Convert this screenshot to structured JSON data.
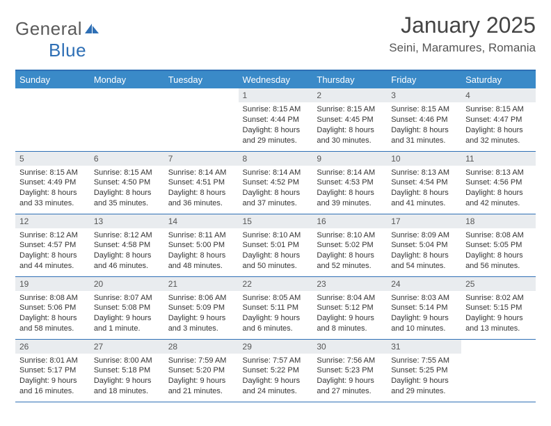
{
  "logo": {
    "text1": "General",
    "text2": "Blue"
  },
  "title": "January 2025",
  "location": "Seini, Maramures, Romania",
  "colors": {
    "header_bg": "#3a8ac8",
    "border": "#2e6fb5",
    "daynum_bg": "#e9ecef",
    "text": "#333333",
    "title_text": "#444444"
  },
  "daysOfWeek": [
    "Sunday",
    "Monday",
    "Tuesday",
    "Wednesday",
    "Thursday",
    "Friday",
    "Saturday"
  ],
  "weeks": [
    [
      {
        "n": "",
        "sr": "",
        "ss": "",
        "d1": "",
        "d2": ""
      },
      {
        "n": "",
        "sr": "",
        "ss": "",
        "d1": "",
        "d2": ""
      },
      {
        "n": "",
        "sr": "",
        "ss": "",
        "d1": "",
        "d2": ""
      },
      {
        "n": "1",
        "sr": "Sunrise: 8:15 AM",
        "ss": "Sunset: 4:44 PM",
        "d1": "Daylight: 8 hours",
        "d2": "and 29 minutes."
      },
      {
        "n": "2",
        "sr": "Sunrise: 8:15 AM",
        "ss": "Sunset: 4:45 PM",
        "d1": "Daylight: 8 hours",
        "d2": "and 30 minutes."
      },
      {
        "n": "3",
        "sr": "Sunrise: 8:15 AM",
        "ss": "Sunset: 4:46 PM",
        "d1": "Daylight: 8 hours",
        "d2": "and 31 minutes."
      },
      {
        "n": "4",
        "sr": "Sunrise: 8:15 AM",
        "ss": "Sunset: 4:47 PM",
        "d1": "Daylight: 8 hours",
        "d2": "and 32 minutes."
      }
    ],
    [
      {
        "n": "5",
        "sr": "Sunrise: 8:15 AM",
        "ss": "Sunset: 4:49 PM",
        "d1": "Daylight: 8 hours",
        "d2": "and 33 minutes."
      },
      {
        "n": "6",
        "sr": "Sunrise: 8:15 AM",
        "ss": "Sunset: 4:50 PM",
        "d1": "Daylight: 8 hours",
        "d2": "and 35 minutes."
      },
      {
        "n": "7",
        "sr": "Sunrise: 8:14 AM",
        "ss": "Sunset: 4:51 PM",
        "d1": "Daylight: 8 hours",
        "d2": "and 36 minutes."
      },
      {
        "n": "8",
        "sr": "Sunrise: 8:14 AM",
        "ss": "Sunset: 4:52 PM",
        "d1": "Daylight: 8 hours",
        "d2": "and 37 minutes."
      },
      {
        "n": "9",
        "sr": "Sunrise: 8:14 AM",
        "ss": "Sunset: 4:53 PM",
        "d1": "Daylight: 8 hours",
        "d2": "and 39 minutes."
      },
      {
        "n": "10",
        "sr": "Sunrise: 8:13 AM",
        "ss": "Sunset: 4:54 PM",
        "d1": "Daylight: 8 hours",
        "d2": "and 41 minutes."
      },
      {
        "n": "11",
        "sr": "Sunrise: 8:13 AM",
        "ss": "Sunset: 4:56 PM",
        "d1": "Daylight: 8 hours",
        "d2": "and 42 minutes."
      }
    ],
    [
      {
        "n": "12",
        "sr": "Sunrise: 8:12 AM",
        "ss": "Sunset: 4:57 PM",
        "d1": "Daylight: 8 hours",
        "d2": "and 44 minutes."
      },
      {
        "n": "13",
        "sr": "Sunrise: 8:12 AM",
        "ss": "Sunset: 4:58 PM",
        "d1": "Daylight: 8 hours",
        "d2": "and 46 minutes."
      },
      {
        "n": "14",
        "sr": "Sunrise: 8:11 AM",
        "ss": "Sunset: 5:00 PM",
        "d1": "Daylight: 8 hours",
        "d2": "and 48 minutes."
      },
      {
        "n": "15",
        "sr": "Sunrise: 8:10 AM",
        "ss": "Sunset: 5:01 PM",
        "d1": "Daylight: 8 hours",
        "d2": "and 50 minutes."
      },
      {
        "n": "16",
        "sr": "Sunrise: 8:10 AM",
        "ss": "Sunset: 5:02 PM",
        "d1": "Daylight: 8 hours",
        "d2": "and 52 minutes."
      },
      {
        "n": "17",
        "sr": "Sunrise: 8:09 AM",
        "ss": "Sunset: 5:04 PM",
        "d1": "Daylight: 8 hours",
        "d2": "and 54 minutes."
      },
      {
        "n": "18",
        "sr": "Sunrise: 8:08 AM",
        "ss": "Sunset: 5:05 PM",
        "d1": "Daylight: 8 hours",
        "d2": "and 56 minutes."
      }
    ],
    [
      {
        "n": "19",
        "sr": "Sunrise: 8:08 AM",
        "ss": "Sunset: 5:06 PM",
        "d1": "Daylight: 8 hours",
        "d2": "and 58 minutes."
      },
      {
        "n": "20",
        "sr": "Sunrise: 8:07 AM",
        "ss": "Sunset: 5:08 PM",
        "d1": "Daylight: 9 hours",
        "d2": "and 1 minute."
      },
      {
        "n": "21",
        "sr": "Sunrise: 8:06 AM",
        "ss": "Sunset: 5:09 PM",
        "d1": "Daylight: 9 hours",
        "d2": "and 3 minutes."
      },
      {
        "n": "22",
        "sr": "Sunrise: 8:05 AM",
        "ss": "Sunset: 5:11 PM",
        "d1": "Daylight: 9 hours",
        "d2": "and 6 minutes."
      },
      {
        "n": "23",
        "sr": "Sunrise: 8:04 AM",
        "ss": "Sunset: 5:12 PM",
        "d1": "Daylight: 9 hours",
        "d2": "and 8 minutes."
      },
      {
        "n": "24",
        "sr": "Sunrise: 8:03 AM",
        "ss": "Sunset: 5:14 PM",
        "d1": "Daylight: 9 hours",
        "d2": "and 10 minutes."
      },
      {
        "n": "25",
        "sr": "Sunrise: 8:02 AM",
        "ss": "Sunset: 5:15 PM",
        "d1": "Daylight: 9 hours",
        "d2": "and 13 minutes."
      }
    ],
    [
      {
        "n": "26",
        "sr": "Sunrise: 8:01 AM",
        "ss": "Sunset: 5:17 PM",
        "d1": "Daylight: 9 hours",
        "d2": "and 16 minutes."
      },
      {
        "n": "27",
        "sr": "Sunrise: 8:00 AM",
        "ss": "Sunset: 5:18 PM",
        "d1": "Daylight: 9 hours",
        "d2": "and 18 minutes."
      },
      {
        "n": "28",
        "sr": "Sunrise: 7:59 AM",
        "ss": "Sunset: 5:20 PM",
        "d1": "Daylight: 9 hours",
        "d2": "and 21 minutes."
      },
      {
        "n": "29",
        "sr": "Sunrise: 7:57 AM",
        "ss": "Sunset: 5:22 PM",
        "d1": "Daylight: 9 hours",
        "d2": "and 24 minutes."
      },
      {
        "n": "30",
        "sr": "Sunrise: 7:56 AM",
        "ss": "Sunset: 5:23 PM",
        "d1": "Daylight: 9 hours",
        "d2": "and 27 minutes."
      },
      {
        "n": "31",
        "sr": "Sunrise: 7:55 AM",
        "ss": "Sunset: 5:25 PM",
        "d1": "Daylight: 9 hours",
        "d2": "and 29 minutes."
      },
      {
        "n": "",
        "sr": "",
        "ss": "",
        "d1": "",
        "d2": ""
      }
    ]
  ]
}
